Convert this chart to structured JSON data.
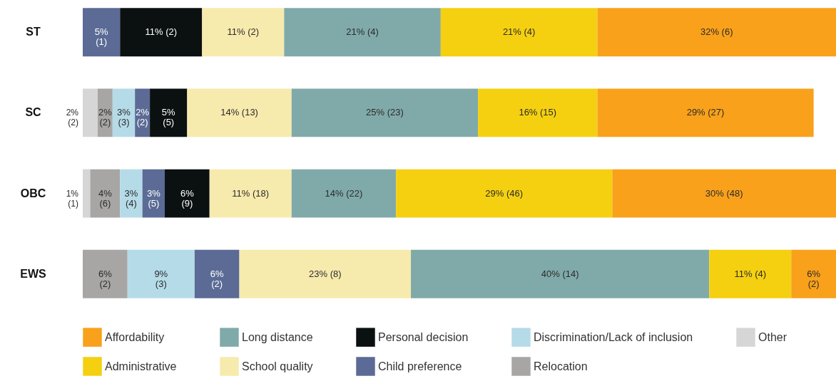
{
  "chart_data": {
    "type": "bar",
    "orientation": "horizontal",
    "stacked": true,
    "legend": "bottom",
    "categories": [
      "ST",
      "SC",
      "OBC",
      "EWS"
    ],
    "series": [
      {
        "name": "Other",
        "color": "#d6d6d6",
        "values": [
          null,
          2,
          1,
          null
        ],
        "value_labels": [
          null,
          "2% (2)",
          "1% (1)",
          null
        ]
      },
      {
        "name": "Relocation",
        "color": "#a8a6a4",
        "values": [
          null,
          2,
          4,
          6
        ],
        "value_labels": [
          null,
          "2% (2)",
          "4% (6)",
          "6% (2)"
        ]
      },
      {
        "name": "Discrimination/Lack of inclusion",
        "color": "#b5dbe8",
        "values": [
          null,
          3,
          3,
          9
        ],
        "value_labels": [
          null,
          "3% (3)",
          "3% (4)",
          "9% (3)"
        ]
      },
      {
        "name": "Child preference",
        "color": "#5b6b95",
        "values": [
          5,
          2,
          3,
          6
        ],
        "value_labels": [
          "5% (1)",
          "2% (2)",
          "3% (5)",
          "6% (2)"
        ]
      },
      {
        "name": "Personal decision",
        "color": "#0b1011",
        "values": [
          11,
          5,
          6,
          null
        ],
        "value_labels": [
          "11% (2)",
          "5% (5)",
          "6% (9)",
          null
        ]
      },
      {
        "name": "School quality",
        "color": "#f7eaad",
        "values": [
          11,
          14,
          11,
          23
        ],
        "value_labels": [
          "11% (2)",
          "14% (13)",
          "11% (18)",
          "23% (8)"
        ]
      },
      {
        "name": "Long distance",
        "color": "#80aaa9",
        "values": [
          21,
          25,
          14,
          40
        ],
        "value_labels": [
          "21% (4)",
          "25% (23)",
          "14% (22)",
          "40% (14)"
        ]
      },
      {
        "name": "Administrative",
        "color": "#f5d010",
        "values": [
          21,
          16,
          29,
          11
        ],
        "value_labels": [
          "21% (4)",
          "16% (15)",
          "29% (46)",
          "11% (4)"
        ]
      },
      {
        "name": "Affordability",
        "color": "#f9a11b",
        "values": [
          32,
          29,
          30,
          6
        ],
        "value_labels": [
          "32% (6)",
          "29% (27)",
          "30% (48)",
          "6% (2)"
        ]
      }
    ]
  }
}
